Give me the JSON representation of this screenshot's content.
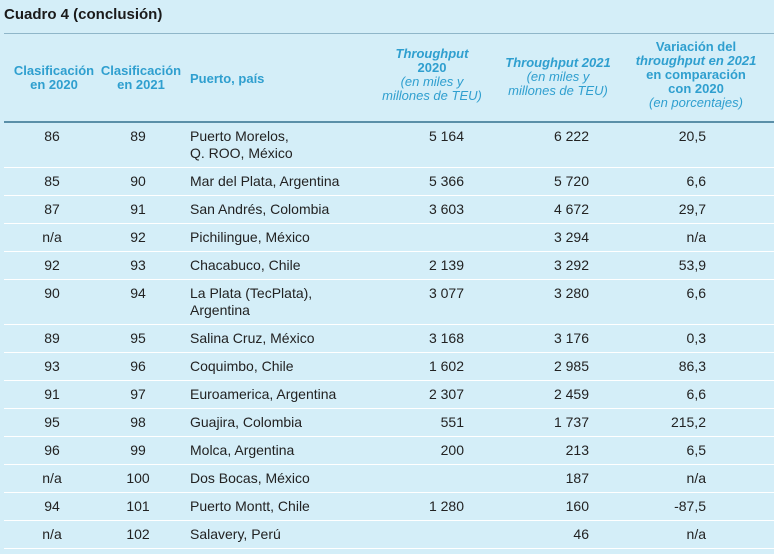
{
  "title": "Cuadro 4 (conclusión)",
  "headers": {
    "rank2020": [
      "Clasificación",
      "en 2020"
    ],
    "rank2021": [
      "Clasificación",
      "en 2021"
    ],
    "port": "Puerto, país",
    "tp2020": [
      "Throughput",
      "2020",
      "(en miles y",
      "millones de TEU)"
    ],
    "tp2021": [
      "Throughput 2021",
      "(en miles y",
      "millones de TEU)"
    ],
    "variation": [
      "Variación del",
      "throughput en 2021",
      "en comparación",
      "con 2020",
      "(en porcentajes)"
    ]
  },
  "rows": [
    {
      "r2020": "86",
      "r2021": "89",
      "port1": "Puerto Morelos,",
      "port2": "Q. ROO, México",
      "tp2020": "5 164",
      "tp2021": "6 222",
      "var": "20,5"
    },
    {
      "r2020": "85",
      "r2021": "90",
      "port1": "Mar del Plata, Argentina",
      "port2": "",
      "tp2020": "5 366",
      "tp2021": "5 720",
      "var": "6,6"
    },
    {
      "r2020": "87",
      "r2021": "91",
      "port1": "San Andrés, Colombia",
      "port2": "",
      "tp2020": "3 603",
      "tp2021": "4 672",
      "var": "29,7"
    },
    {
      "r2020": "n/a",
      "r2021": "92",
      "port1": "Pichilingue, México",
      "port2": "",
      "tp2020": "",
      "tp2021": "3 294",
      "var": "n/a"
    },
    {
      "r2020": "92",
      "r2021": "93",
      "port1": "Chacabuco, Chile",
      "port2": "",
      "tp2020": "2 139",
      "tp2021": "3 292",
      "var": "53,9"
    },
    {
      "r2020": "90",
      "r2021": "94",
      "port1": "La Plata (TecPlata),",
      "port2": "Argentina",
      "tp2020": "3 077",
      "tp2021": "3 280",
      "var": "6,6"
    },
    {
      "r2020": "89",
      "r2021": "95",
      "port1": "Salina Cruz, México",
      "port2": "",
      "tp2020": "3 168",
      "tp2021": "3 176",
      "var": "0,3"
    },
    {
      "r2020": "93",
      "r2021": "96",
      "port1": "Coquimbo, Chile",
      "port2": "",
      "tp2020": "1 602",
      "tp2021": "2 985",
      "var": "86,3"
    },
    {
      "r2020": "91",
      "r2021": "97",
      "port1": "Euroamerica, Argentina",
      "port2": "",
      "tp2020": "2 307",
      "tp2021": "2 459",
      "var": "6,6"
    },
    {
      "r2020": "95",
      "r2021": "98",
      "port1": "Guajira, Colombia",
      "port2": "",
      "tp2020": "551",
      "tp2021": "1 737",
      "var": "215,2"
    },
    {
      "r2020": "96",
      "r2021": "99",
      "port1": "Molca, Argentina",
      "port2": "",
      "tp2020": "200",
      "tp2021": "213",
      "var": "6,5"
    },
    {
      "r2020": "n/a",
      "r2021": "100",
      "port1": "Dos Bocas, México",
      "port2": "",
      "tp2020": "",
      "tp2021": "187",
      "var": "n/a"
    },
    {
      "r2020": "94",
      "r2021": "101",
      "port1": "Puerto Montt, Chile",
      "port2": "",
      "tp2020": "1 280",
      "tp2021": "160",
      "var": "-87,5"
    },
    {
      "r2020": "n/a",
      "r2021": "102",
      "port1": "Salavery, Perú",
      "port2": "",
      "tp2020": "",
      "tp2021": "46",
      "var": "n/a"
    }
  ]
}
